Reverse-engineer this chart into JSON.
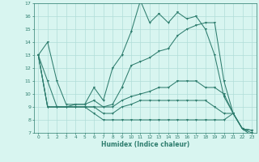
{
  "xlabel": "Humidex (Indice chaleur)",
  "x": [
    0,
    1,
    2,
    3,
    4,
    5,
    6,
    7,
    8,
    9,
    10,
    11,
    12,
    13,
    14,
    15,
    16,
    17,
    18,
    19,
    20,
    21,
    22,
    23
  ],
  "line_max": [
    13,
    14,
    11,
    9.2,
    9.2,
    9.2,
    10.5,
    9.5,
    12.0,
    13.0,
    14.8,
    17.2,
    15.5,
    16.2,
    15.5,
    16.3,
    15.8,
    16.0,
    15.0,
    13.0,
    9.8,
    8.5,
    7.3,
    7.0
  ],
  "line_upper": [
    13,
    11,
    9,
    9,
    9.2,
    9.2,
    9.5,
    9.0,
    9.2,
    10.5,
    12.2,
    12.5,
    12.8,
    13.3,
    13.5,
    14.5,
    15.0,
    15.3,
    15.5,
    15.5,
    11.0,
    8.5,
    7.3,
    7.2
  ],
  "line_mid": [
    13,
    9,
    9,
    9,
    9,
    9,
    9,
    9,
    9,
    9.5,
    9.8,
    10.0,
    10.2,
    10.5,
    10.5,
    11.0,
    11.0,
    11.0,
    10.5,
    10.5,
    10.0,
    8.5,
    7.3,
    7.2
  ],
  "line_lower": [
    13,
    9,
    9,
    9,
    9,
    9,
    9,
    8.5,
    8.5,
    9.0,
    9.2,
    9.5,
    9.5,
    9.5,
    9.5,
    9.5,
    9.5,
    9.5,
    9.5,
    9.0,
    8.5,
    8.5,
    7.3,
    7.2
  ],
  "line_min": [
    13,
    9,
    9,
    9,
    9,
    9,
    8.5,
    8.0,
    8.0,
    8.0,
    8.0,
    8.0,
    8.0,
    8.0,
    8.0,
    8.0,
    8.0,
    8.0,
    8.0,
    8.0,
    8.0,
    8.5,
    7.3,
    6.8
  ],
  "color": "#2e7d6e",
  "bg_color": "#d8f5f0",
  "grid_color": "#b0ddd8",
  "ylim": [
    7,
    17
  ],
  "yticks": [
    7,
    8,
    9,
    10,
    11,
    12,
    13,
    14,
    15,
    16,
    17
  ],
  "xticks": [
    0,
    1,
    2,
    3,
    4,
    5,
    6,
    7,
    8,
    9,
    10,
    11,
    12,
    13,
    14,
    15,
    16,
    17,
    18,
    19,
    20,
    21,
    22,
    23
  ]
}
